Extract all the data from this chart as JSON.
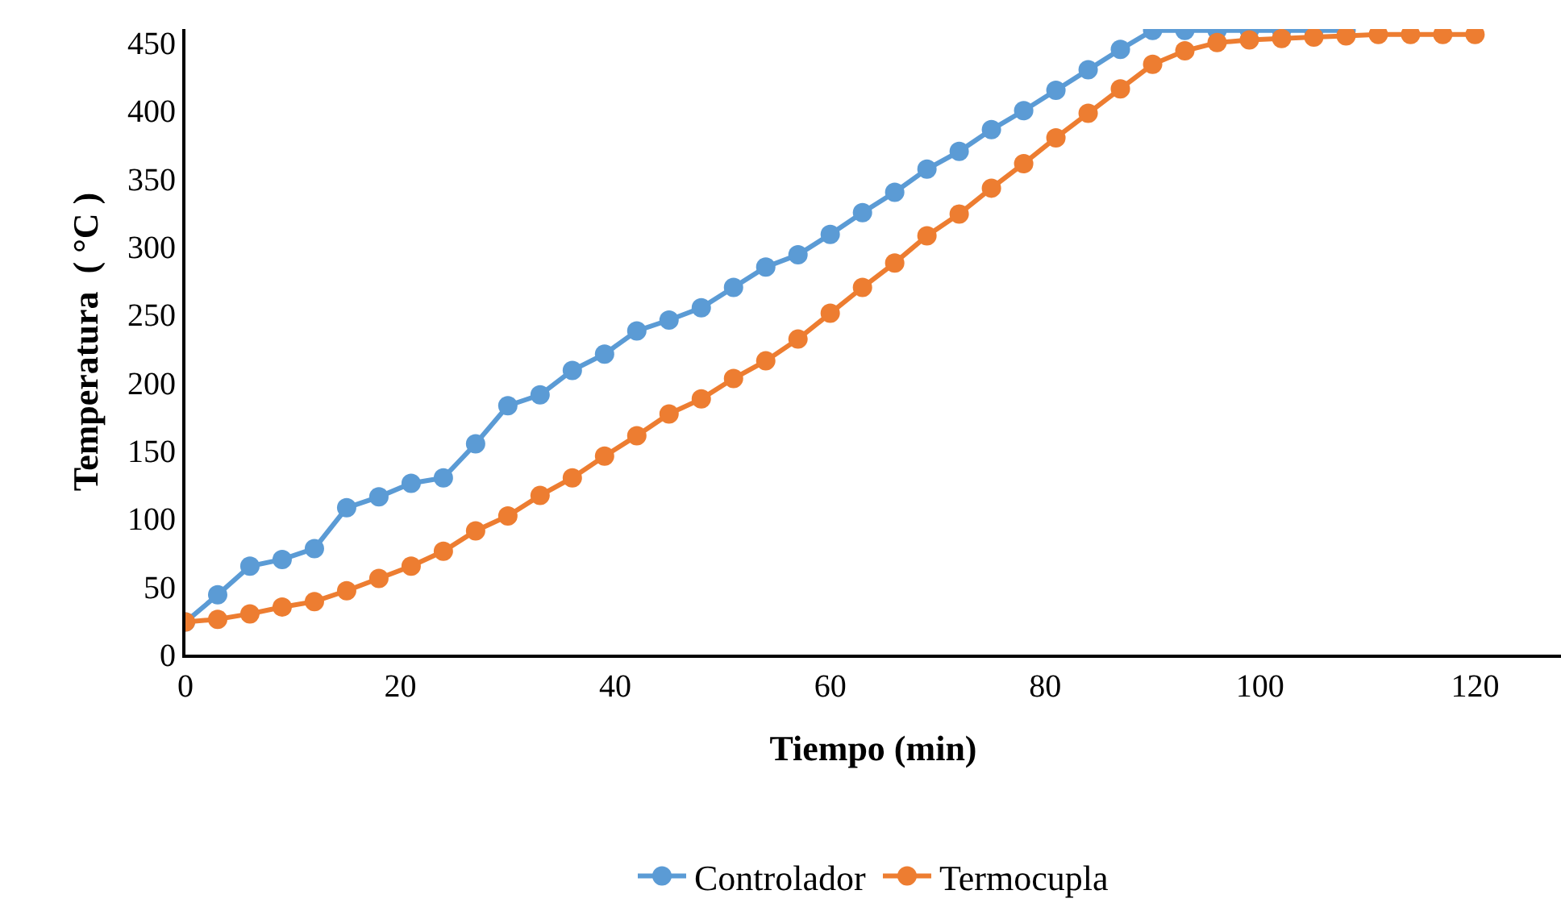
{
  "chart_data": {
    "type": "line",
    "xlabel": "Tiempo (min)",
    "ylabel": "Temperatura  ( °C )",
    "x": [
      0,
      3,
      6,
      9,
      12,
      15,
      18,
      21,
      24,
      27,
      30,
      33,
      36,
      39,
      42,
      45,
      48,
      51,
      54,
      57,
      60,
      63,
      66,
      69,
      72,
      75,
      78,
      81,
      84,
      87,
      90,
      93,
      96,
      99,
      102,
      105,
      108,
      111,
      114,
      117,
      120
    ],
    "series": [
      {
        "name": "Controlador",
        "color": "#5b9bd5",
        "values": [
          24,
          44,
          65,
          70,
          78,
          108,
          116,
          126,
          130,
          155,
          183,
          191,
          209,
          221,
          238,
          246,
          255,
          270,
          285,
          294,
          309,
          325,
          340,
          357,
          370,
          386,
          400,
          415,
          430,
          445,
          459,
          459,
          459,
          459,
          459,
          459,
          459,
          null,
          null,
          null,
          null
        ]
      },
      {
        "name": "Termocupla",
        "color": "#ed7d31",
        "values": [
          24,
          26,
          30,
          35,
          39,
          47,
          56,
          65,
          76,
          91,
          102,
          117,
          130,
          146,
          161,
          177,
          188,
          203,
          216,
          232,
          251,
          270,
          288,
          308,
          324,
          343,
          361,
          380,
          398,
          416,
          434,
          444,
          450,
          452,
          453,
          454,
          455,
          456,
          456,
          456,
          456
        ]
      }
    ],
    "xlim": [
      0,
      128
    ],
    "xticks": [
      0,
      20,
      40,
      60,
      80,
      100,
      120
    ],
    "ylim": [
      0,
      460
    ],
    "yticks": [
      0,
      50,
      100,
      150,
      200,
      250,
      300,
      350,
      400,
      450
    ],
    "grid": false,
    "legend": "bottom",
    "marker": "circle",
    "line_style": "solid"
  }
}
